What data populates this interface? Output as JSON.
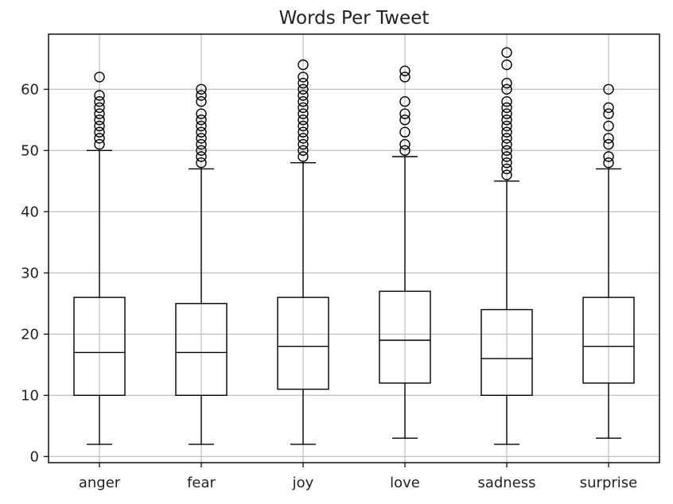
{
  "chart_data": {
    "type": "box",
    "title": "Words Per Tweet",
    "xlabel": "",
    "ylabel": "",
    "ylim": [
      -1,
      69
    ],
    "yticks": [
      0,
      10,
      20,
      30,
      40,
      50,
      60
    ],
    "grid": true,
    "categories": [
      "anger",
      "fear",
      "joy",
      "love",
      "sadness",
      "surprise"
    ],
    "boxes": [
      {
        "category": "anger",
        "whisker_low": 2,
        "q1": 10,
        "median": 17,
        "q3": 26,
        "whisker_high": 50,
        "outliers": [
          51,
          52,
          53,
          54,
          55,
          56,
          57,
          58,
          59,
          62
        ]
      },
      {
        "category": "fear",
        "whisker_low": 2,
        "q1": 10,
        "median": 17,
        "q3": 25,
        "whisker_high": 47,
        "outliers": [
          48,
          49,
          50,
          51,
          52,
          53,
          54,
          55,
          56,
          58,
          59,
          60
        ]
      },
      {
        "category": "joy",
        "whisker_low": 2,
        "q1": 11,
        "median": 18,
        "q3": 26,
        "whisker_high": 48,
        "outliers": [
          49,
          50,
          51,
          52,
          53,
          54,
          55,
          56,
          57,
          58,
          59,
          60,
          61,
          62,
          64
        ]
      },
      {
        "category": "love",
        "whisker_low": 3,
        "q1": 12,
        "median": 19,
        "q3": 27,
        "whisker_high": 49,
        "outliers": [
          50,
          51,
          53,
          55,
          56,
          58,
          62,
          63
        ]
      },
      {
        "category": "sadness",
        "whisker_low": 2,
        "q1": 10,
        "median": 16,
        "q3": 24,
        "whisker_high": 45,
        "outliers": [
          46,
          47,
          48,
          49,
          50,
          51,
          52,
          53,
          54,
          55,
          56,
          57,
          58,
          60,
          61,
          64,
          66
        ]
      },
      {
        "category": "surprise",
        "whisker_low": 3,
        "q1": 12,
        "median": 18,
        "q3": 26,
        "whisker_high": 47,
        "outliers": [
          48,
          49,
          51,
          52,
          54,
          56,
          57,
          60
        ]
      }
    ],
    "colors": {
      "box": "#000000",
      "outlier": "#000000",
      "grid": "#b0b0b0",
      "background": "#ffffff"
    }
  }
}
